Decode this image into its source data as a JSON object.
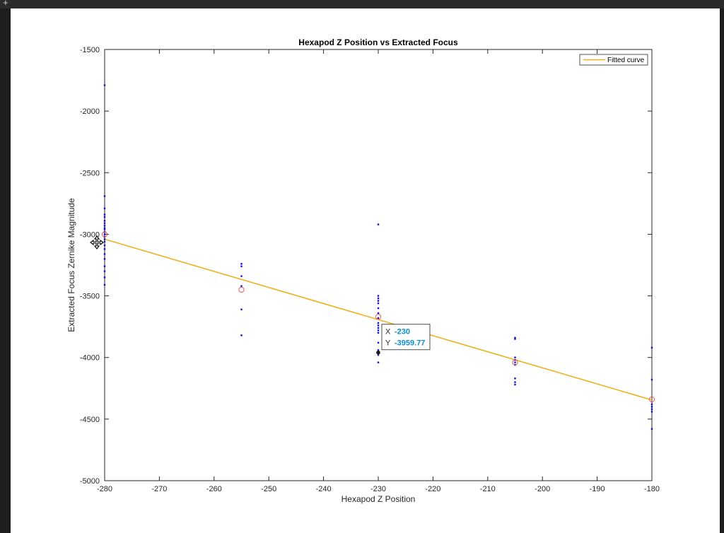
{
  "window": {
    "new_tab_glyph": "+"
  },
  "colors": {
    "fit_line": "#EDB120",
    "points": "#1010D0",
    "means": "#E55A5A",
    "datatip_value": "#0A8CD6",
    "datatip_marker": "#1a1a1a"
  },
  "chart_data": {
    "type": "scatter",
    "title": "Hexapod Z Position vs Extracted Focus",
    "xlabel": "Hexapod Z Position",
    "ylabel": "Extracted Focus Zernike Magnitude",
    "xlim": [
      -280,
      -180
    ],
    "ylim": [
      -5000,
      -1500
    ],
    "xticks": [
      -280,
      -270,
      -260,
      -250,
      -240,
      -230,
      -220,
      -210,
      -200,
      -190,
      -180
    ],
    "yticks": [
      -5000,
      -4500,
      -4000,
      -3500,
      -3000,
      -2500,
      -2000,
      -1500
    ],
    "grid": false,
    "legend": {
      "position": "top-right",
      "entries": [
        "Fitted curve"
      ]
    },
    "series": [
      {
        "marker": "dot",
        "points": [
          [
            -280,
            -1790
          ],
          [
            -280,
            -2690
          ],
          [
            -280,
            -2790
          ],
          [
            -280,
            -2840
          ],
          [
            -280,
            -2860
          ],
          [
            -280,
            -2890
          ],
          [
            -280,
            -2910
          ],
          [
            -280,
            -2930
          ],
          [
            -280,
            -2950
          ],
          [
            -280,
            -2960
          ],
          [
            -280,
            -2980
          ],
          [
            -280,
            -3000
          ],
          [
            -280,
            -3020
          ],
          [
            -280,
            -3040
          ],
          [
            -280,
            -3060
          ],
          [
            -280,
            -3090
          ],
          [
            -280,
            -3120
          ],
          [
            -280,
            -3160
          ],
          [
            -280,
            -3200
          ],
          [
            -280,
            -3260
          ],
          [
            -280,
            -3300
          ],
          [
            -280,
            -3350
          ],
          [
            -280,
            -3410
          ],
          [
            -255,
            -3240
          ],
          [
            -255,
            -3260
          ],
          [
            -255,
            -3340
          ],
          [
            -255,
            -3420
          ],
          [
            -255,
            -3610
          ],
          [
            -255,
            -3820
          ],
          [
            -230,
            -2920
          ],
          [
            -230,
            -3500
          ],
          [
            -230,
            -3520
          ],
          [
            -230,
            -3540
          ],
          [
            -230,
            -3560
          ],
          [
            -230,
            -3600
          ],
          [
            -230,
            -3640
          ],
          [
            -230,
            -3680
          ],
          [
            -230,
            -3720
          ],
          [
            -230,
            -3740
          ],
          [
            -230,
            -3760
          ],
          [
            -230,
            -3780
          ],
          [
            -230,
            -3800
          ],
          [
            -230,
            -3880
          ],
          [
            -230,
            -3940
          ],
          [
            -230,
            -3980
          ],
          [
            -230,
            -4040
          ],
          [
            -205,
            -3840
          ],
          [
            -205,
            -3850
          ],
          [
            -205,
            -4000
          ],
          [
            -205,
            -4020
          ],
          [
            -205,
            -4040
          ],
          [
            -205,
            -4060
          ],
          [
            -205,
            -4170
          ],
          [
            -205,
            -4200
          ],
          [
            -205,
            -4220
          ],
          [
            -180,
            -3920
          ],
          [
            -180,
            -4180
          ],
          [
            -180,
            -4380
          ],
          [
            -180,
            -4400
          ],
          [
            -180,
            -4420
          ],
          [
            -180,
            -4440
          ],
          [
            -180,
            -4580
          ]
        ]
      },
      {
        "marker": "circle",
        "points": [
          [
            -280,
            -3000
          ],
          [
            -255,
            -3450
          ],
          [
            -230,
            -3670
          ],
          [
            -205,
            -4040
          ],
          [
            -180,
            -4340
          ]
        ]
      },
      {
        "name": "Fitted curve",
        "marker": "line",
        "points": [
          [
            -280,
            -3040
          ],
          [
            -180,
            -4345
          ]
        ]
      }
    ],
    "datatip": {
      "x_key": "X",
      "y_key": "Y",
      "x_value": "-230",
      "y_value": "-3959.77",
      "point": [
        -230,
        -3959.77
      ]
    }
  }
}
